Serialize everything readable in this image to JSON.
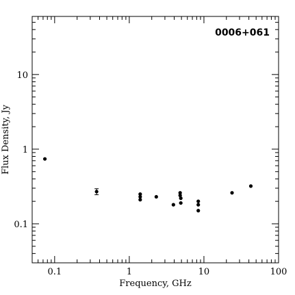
{
  "chart_data": {
    "type": "scatter",
    "title": "0006+061",
    "xlabel": "Frequency, GHz",
    "ylabel": "Flux Density, Jy",
    "x_scale": "log",
    "y_scale": "log",
    "xlim": [
      0.05,
      100
    ],
    "ylim": [
      0.03,
      60
    ],
    "x_ticks": [
      {
        "value": 0.1,
        "label": "0.1"
      },
      {
        "value": 1,
        "label": "1"
      },
      {
        "value": 10,
        "label": "10"
      },
      {
        "value": 100,
        "label": "100"
      }
    ],
    "y_ticks": [
      {
        "value": 0.1,
        "label": "0.1"
      },
      {
        "value": 1,
        "label": "1"
      },
      {
        "value": 10,
        "label": "10"
      }
    ],
    "grid": false,
    "points": [
      {
        "x": 0.074,
        "y": 0.74
      },
      {
        "x": 0.365,
        "y": 0.27,
        "err": 0.025
      },
      {
        "x": 1.4,
        "y": 0.25
      },
      {
        "x": 1.4,
        "y": 0.23
      },
      {
        "x": 1.4,
        "y": 0.21
      },
      {
        "x": 2.3,
        "y": 0.23
      },
      {
        "x": 3.9,
        "y": 0.18
      },
      {
        "x": 4.8,
        "y": 0.26
      },
      {
        "x": 4.8,
        "y": 0.24
      },
      {
        "x": 4.9,
        "y": 0.22
      },
      {
        "x": 4.9,
        "y": 0.19
      },
      {
        "x": 8.4,
        "y": 0.2
      },
      {
        "x": 8.4,
        "y": 0.18
      },
      {
        "x": 8.4,
        "y": 0.15
      },
      {
        "x": 23.8,
        "y": 0.26
      },
      {
        "x": 42.5,
        "y": 0.32
      }
    ],
    "marker_color": "#000000"
  }
}
